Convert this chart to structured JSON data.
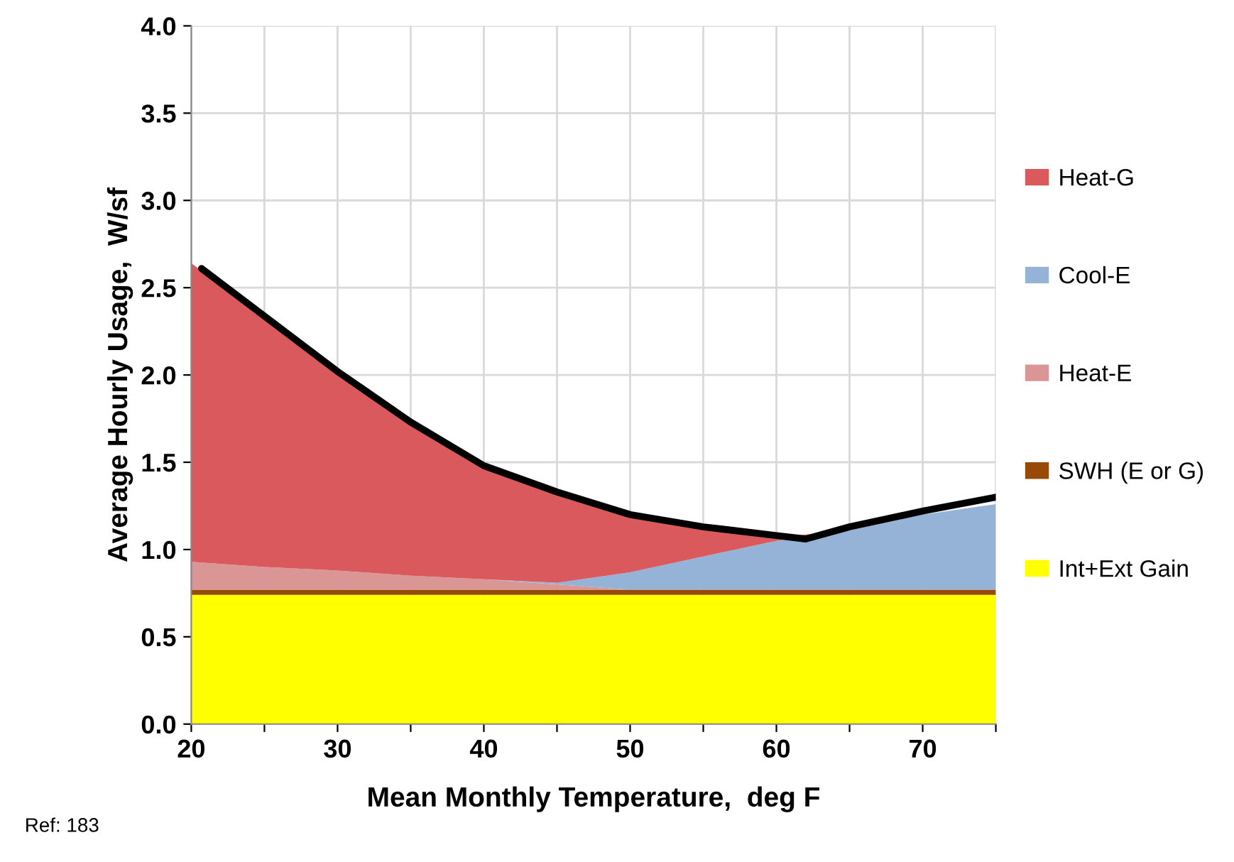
{
  "chart_data": {
    "type": "area",
    "stacked": true,
    "xlabel": "Mean Monthly Temperature,  deg F",
    "ylabel": "Average Hourly Usage,  W/sf",
    "annotations": [
      "Ref: 183"
    ],
    "x": [
      20,
      25,
      30,
      35,
      40,
      45,
      50,
      55,
      60,
      65,
      70,
      75
    ],
    "series": [
      {
        "name": "Int+Ext Gain",
        "color": "#ffff00",
        "values": [
          0.74,
          0.74,
          0.74,
          0.74,
          0.74,
          0.74,
          0.74,
          0.74,
          0.74,
          0.74,
          0.74,
          0.74
        ]
      },
      {
        "name": "SWH (E or G)",
        "color": "#984807",
        "values": [
          0.03,
          0.03,
          0.03,
          0.03,
          0.03,
          0.03,
          0.03,
          0.03,
          0.03,
          0.03,
          0.03,
          0.03
        ]
      },
      {
        "name": "Heat-E",
        "color": "#d99694",
        "values": [
          0.16,
          0.13,
          0.11,
          0.08,
          0.06,
          0.03,
          0,
          0,
          0,
          0,
          0,
          0
        ]
      },
      {
        "name": "Cool-E",
        "color": "#95b3d7",
        "values": [
          0,
          0,
          0,
          0,
          0,
          0.01,
          0.1,
          0.19,
          0.28,
          0.34,
          0.43,
          0.49
        ]
      },
      {
        "name": "Heat-G",
        "color": "#d9595c",
        "values": [
          1.71,
          1.43,
          1.16,
          0.9,
          0.67,
          0.51,
          0.33,
          0.16,
          0.02,
          0,
          0,
          0
        ]
      },
      {
        "type": "line",
        "color": "#000000",
        "x": [
          20.7,
          30,
          35,
          40,
          45,
          50,
          55,
          60,
          62,
          65,
          70,
          75
        ],
        "values": [
          2.61,
          2.02,
          1.73,
          1.48,
          1.33,
          1.2,
          1.13,
          1.08,
          1.06,
          1.13,
          1.22,
          1.3
        ]
      }
    ],
    "xlim": [
      20,
      75
    ],
    "xticks": [
      20,
      {
        "value": 25,
        "label": null
      },
      30,
      {
        "value": 35,
        "label": null
      },
      40,
      {
        "value": 45,
        "label": null
      },
      50,
      {
        "value": 55,
        "label": null
      },
      60,
      {
        "value": 65,
        "label": null
      },
      70,
      {
        "value": 75,
        "label": null
      }
    ],
    "ylim": [
      0,
      4
    ],
    "yticks": [
      {
        "value": 0,
        "label": "0.0"
      },
      0.5,
      {
        "value": 1,
        "label": "1.0"
      },
      1.5,
      {
        "value": 2,
        "label": "2.0"
      },
      2.5,
      {
        "value": 3,
        "label": "3.0"
      },
      3.5,
      {
        "value": 4,
        "label": "4.0"
      }
    ],
    "grid": true,
    "legend": "right"
  }
}
